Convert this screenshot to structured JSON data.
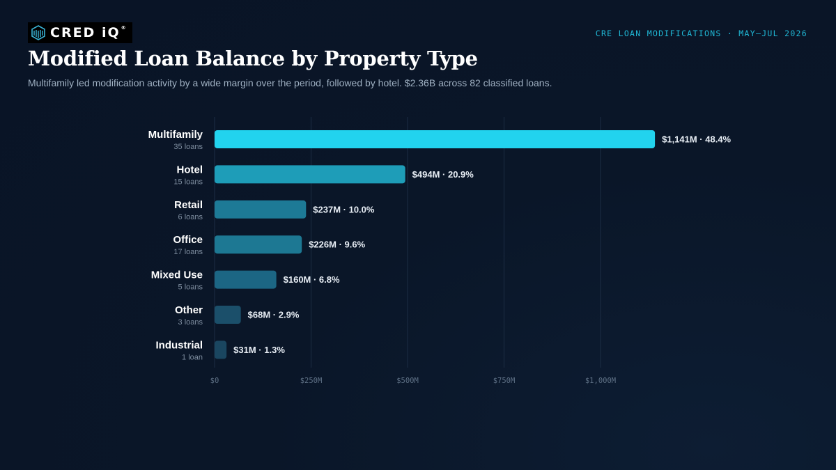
{
  "brand": {
    "name": "CRED iQ",
    "registered": "®"
  },
  "header": {
    "kicker": "CRE LOAN MODIFICATIONS · MAY–JUL 2026",
    "title": "Modified Loan Balance by Property Type",
    "subtitle": "Multifamily led modification activity by a wide margin over the period, followed by hotel. $2.36B across 82 classified loans."
  },
  "colors": {
    "accent": "#22d3ee",
    "kicker": "#20b8d6",
    "bar_fills": [
      "#22d3ee",
      "#1e9db8",
      "#1d7a96",
      "#1d7893",
      "#1c6684",
      "#1b4f6a",
      "#1a4660"
    ],
    "gridline": "#1c2d44"
  },
  "chart_data": {
    "type": "bar",
    "orientation": "horizontal",
    "categories": [
      "Multifamily",
      "Hotel",
      "Retail",
      "Office",
      "Mixed Use",
      "Other",
      "Industrial"
    ],
    "category_sublabels": [
      "35 loans",
      "15 loans",
      "6 loans",
      "17 loans",
      "5 loans",
      "3 loans",
      "1 loan"
    ],
    "values": [
      1141,
      494,
      237,
      226,
      160,
      68,
      31
    ],
    "value_labels": [
      "$1,141M · 48.4%",
      "$494M · 20.9%",
      "$237M · 10.0%",
      "$226M · 9.6%",
      "$160M · 6.8%",
      "$68M · 2.9%",
      "$31M · 1.3%"
    ],
    "x_ticks": [
      0,
      250,
      500,
      750,
      1000
    ],
    "x_tick_labels": [
      "$0",
      "$250M",
      "$500M",
      "$750M",
      "$1,000M"
    ],
    "xlim": [
      0,
      1250
    ],
    "grid": true,
    "legend": "none"
  }
}
